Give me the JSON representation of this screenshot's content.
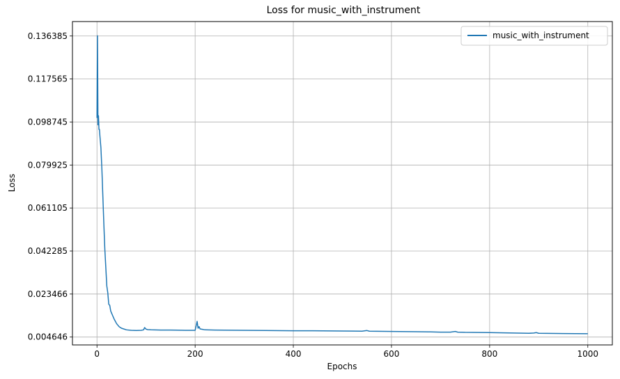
{
  "chart_data": {
    "type": "line",
    "title": "Loss for music_with_instrument",
    "xlabel": "Epochs",
    "ylabel": "Loss",
    "xlim": [
      -50,
      1050
    ],
    "ylim": [
      0.0012,
      0.1427
    ],
    "x_ticks": [
      0,
      200,
      400,
      600,
      800,
      1000
    ],
    "x_tick_labels": [
      "0",
      "200",
      "400",
      "600",
      "800",
      "1000"
    ],
    "y_ticks": [
      0.004646,
      0.023466,
      0.042285,
      0.061105,
      0.079925,
      0.098745,
      0.117565,
      0.136385
    ],
    "y_tick_labels": [
      "0.004646",
      "0.023466",
      "0.042285",
      "0.061105",
      "0.079925",
      "0.098745",
      "0.117565",
      "0.136385"
    ],
    "grid": true,
    "legend": {
      "position": "top-right"
    },
    "series": [
      {
        "name": "music_with_instrument",
        "color": "#1f77b4",
        "x": [
          0,
          1,
          2,
          3,
          4,
          5,
          6,
          8,
          10,
          12,
          14,
          16,
          18,
          20,
          22,
          24,
          26,
          28,
          30,
          35,
          40,
          45,
          50,
          60,
          70,
          80,
          90,
          95,
          97,
          100,
          103,
          110,
          130,
          150,
          180,
          200,
          202,
          204,
          206,
          208,
          210,
          215,
          220,
          240,
          300,
          400,
          440,
          500,
          540,
          550,
          555,
          600,
          650,
          675,
          680,
          700,
          720,
          730,
          735,
          750,
          800,
          850,
          880,
          890,
          895,
          900,
          950,
          1000
        ],
        "y": [
          0.1005,
          0.1365,
          0.0975,
          0.1015,
          0.0955,
          0.0955,
          0.0925,
          0.0875,
          0.078,
          0.066,
          0.054,
          0.043,
          0.035,
          0.027,
          0.024,
          0.019,
          0.0185,
          0.016,
          0.015,
          0.0125,
          0.0105,
          0.0092,
          0.0085,
          0.0078,
          0.0076,
          0.0075,
          0.0076,
          0.0078,
          0.0088,
          0.0081,
          0.0079,
          0.0078,
          0.0077,
          0.0077,
          0.0076,
          0.0076,
          0.0095,
          0.0115,
          0.0085,
          0.0092,
          0.0082,
          0.008,
          0.0078,
          0.0077,
          0.0076,
          0.0074,
          0.0074,
          0.0073,
          0.0072,
          0.0075,
          0.0072,
          0.0071,
          0.007,
          0.0069,
          0.0069,
          0.0068,
          0.0068,
          0.0071,
          0.0068,
          0.0067,
          0.0066,
          0.0064,
          0.0063,
          0.0064,
          0.0066,
          0.0063,
          0.0062,
          0.0061
        ]
      }
    ]
  }
}
